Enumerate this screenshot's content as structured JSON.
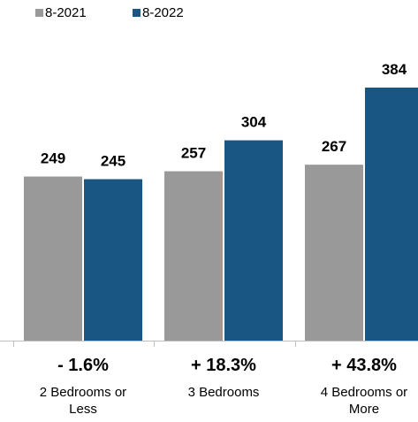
{
  "chart_data": {
    "type": "bar",
    "categories": [
      "2 Bedrooms or Less",
      "3 Bedrooms",
      "4 Bedrooms or More"
    ],
    "category_lines": [
      [
        "2 Bedrooms or",
        "Less"
      ],
      [
        "3 Bedrooms"
      ],
      [
        "4 Bedrooms or",
        "More"
      ]
    ],
    "series": [
      {
        "name": "8-2021",
        "values": [
          249,
          257,
          267
        ],
        "color": "#999999"
      },
      {
        "name": "8-2022",
        "values": [
          245,
          304,
          384
        ],
        "color": "#1a5683"
      }
    ],
    "change_labels": [
      "- 1.6%",
      "+ 18.3%",
      "+ 43.8%"
    ],
    "ylim": [
      0,
      420
    ],
    "legend": "top-left",
    "grid": false,
    "title": "",
    "xlabel": "",
    "ylabel": ""
  }
}
